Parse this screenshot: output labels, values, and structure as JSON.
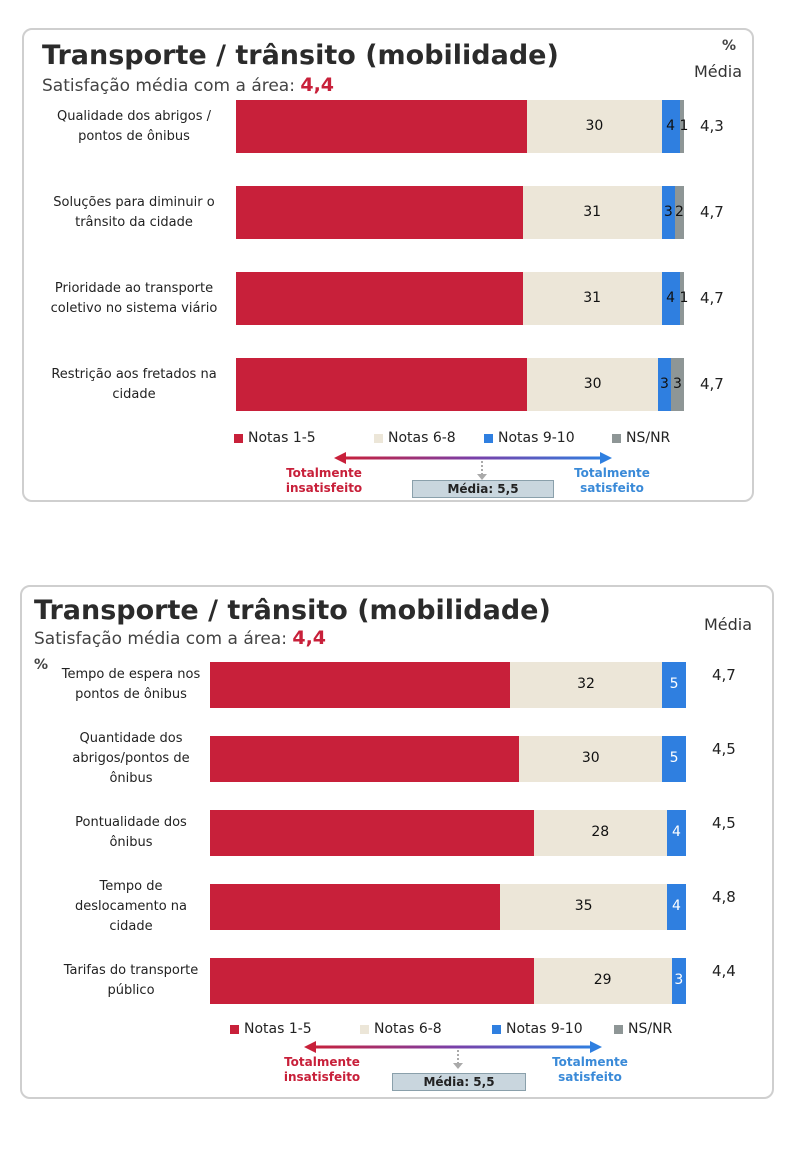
{
  "colors": {
    "notas_1_5": "#c8203a",
    "notas_6_8": "#ece6d8",
    "notas_9_10": "#2f7fe0",
    "ns_nr": "#8e9696"
  },
  "chart_data": [
    {
      "type": "bar",
      "orientation": "horizontal",
      "stacked": true,
      "title": "Transporte / trânsito (mobilidade)",
      "subtitle_prefix": "Satisfação média com a área:",
      "subtitle_value": "4,4",
      "pct_label": "%",
      "mean_header": "Média",
      "categories": [
        "Qualidade dos abrigos / pontos de ônibus",
        "Soluções para diminuir o trânsito da cidade",
        "Prioridade ao transporte coletivo no sistema viário",
        "Restrição aos fretados na cidade"
      ],
      "series": [
        {
          "name": "Notas 1-5",
          "values": [
            65,
            64,
            64,
            67
          ],
          "labels": [
            "",
            "",
            "",
            ""
          ]
        },
        {
          "name": "Notas 6-8",
          "values": [
            30,
            31,
            31,
            30
          ],
          "labels": [
            "30",
            "31",
            "31",
            "30"
          ]
        },
        {
          "name": "Notas 9-10",
          "values": [
            4,
            3,
            4,
            3
          ],
          "labels": [
            "4",
            "3",
            "4",
            "3"
          ]
        },
        {
          "name": "NS/NR",
          "values": [
            1,
            2,
            1,
            3
          ],
          "labels": [
            "1",
            "2",
            "1",
            "3"
          ]
        }
      ],
      "means": [
        "4,3",
        "4,7",
        "4,7",
        "4,7"
      ],
      "scale": {
        "left": "Totalmente insatisfeito",
        "right": "Totalmente satisfeito",
        "media": "Média: 5,5"
      }
    },
    {
      "type": "bar",
      "orientation": "horizontal",
      "stacked": true,
      "title": "Transporte / trânsito (mobilidade)",
      "subtitle_prefix": "Satisfação média com a área:",
      "subtitle_value": "4,4",
      "pct_label": "%",
      "mean_header": "Média",
      "categories": [
        "Tempo de espera nos pontos de ônibus",
        "Quantidade dos abrigos/pontos de ônibus",
        "Pontualidade dos ônibus",
        "Tempo de deslocamento na cidade",
        "Tarifas do transporte público"
      ],
      "series": [
        {
          "name": "Notas 1-5",
          "values": [
            63,
            65,
            68,
            61,
            68
          ],
          "labels": [
            "",
            "",
            "",
            "",
            ""
          ]
        },
        {
          "name": "Notas 6-8",
          "values": [
            32,
            30,
            28,
            35,
            29
          ],
          "labels": [
            "32",
            "30",
            "28",
            "35",
            "29"
          ]
        },
        {
          "name": "Notas 9-10",
          "values": [
            5,
            5,
            4,
            4,
            3
          ],
          "labels": [
            "5",
            "5",
            "4",
            "4",
            "3"
          ]
        },
        {
          "name": "NS/NR",
          "values": [
            0,
            0,
            0,
            0,
            0
          ],
          "labels": [
            "",
            "",
            "",
            "",
            ""
          ]
        }
      ],
      "means": [
        "4,7",
        "4,5",
        "4,5",
        "4,8",
        "4,4"
      ],
      "scale": {
        "left": "Totalmente insatisfeito",
        "right": "Totalmente satisfeito",
        "media": "Média: 5,5"
      }
    }
  ]
}
